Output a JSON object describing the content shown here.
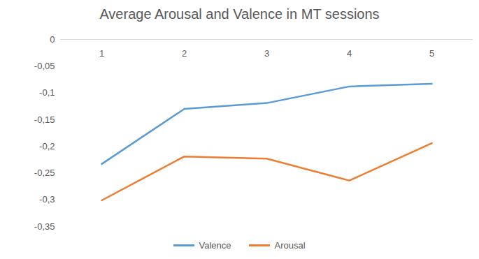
{
  "chart_data": {
    "type": "line",
    "title": "Average Arousal and Valence in MT sessions",
    "categories": [
      "1",
      "2",
      "3",
      "4",
      "5"
    ],
    "series": [
      {
        "name": "Valence",
        "color": "#5b9bd5",
        "values": [
          -0.233,
          -0.13,
          -0.119,
          -0.088,
          -0.083
        ]
      },
      {
        "name": "Arousal",
        "color": "#ed7d31",
        "values": [
          -0.301,
          -0.219,
          -0.223,
          -0.264,
          -0.194
        ]
      }
    ],
    "ylim": [
      -0.35,
      0
    ],
    "yticks": [
      0,
      {
        "value": -0.05,
        "label": "-0,05"
      },
      {
        "value": -0.1,
        "label": "-0,1"
      },
      {
        "value": -0.15,
        "label": "-0,15"
      },
      {
        "value": -0.2,
        "label": "-0,2"
      },
      {
        "value": -0.25,
        "label": "-0,25"
      },
      {
        "value": -0.3,
        "label": "-0,3"
      },
      {
        "value": -0.35,
        "label": "-0,35"
      }
    ],
    "grid": false,
    "legend": "bottom"
  }
}
